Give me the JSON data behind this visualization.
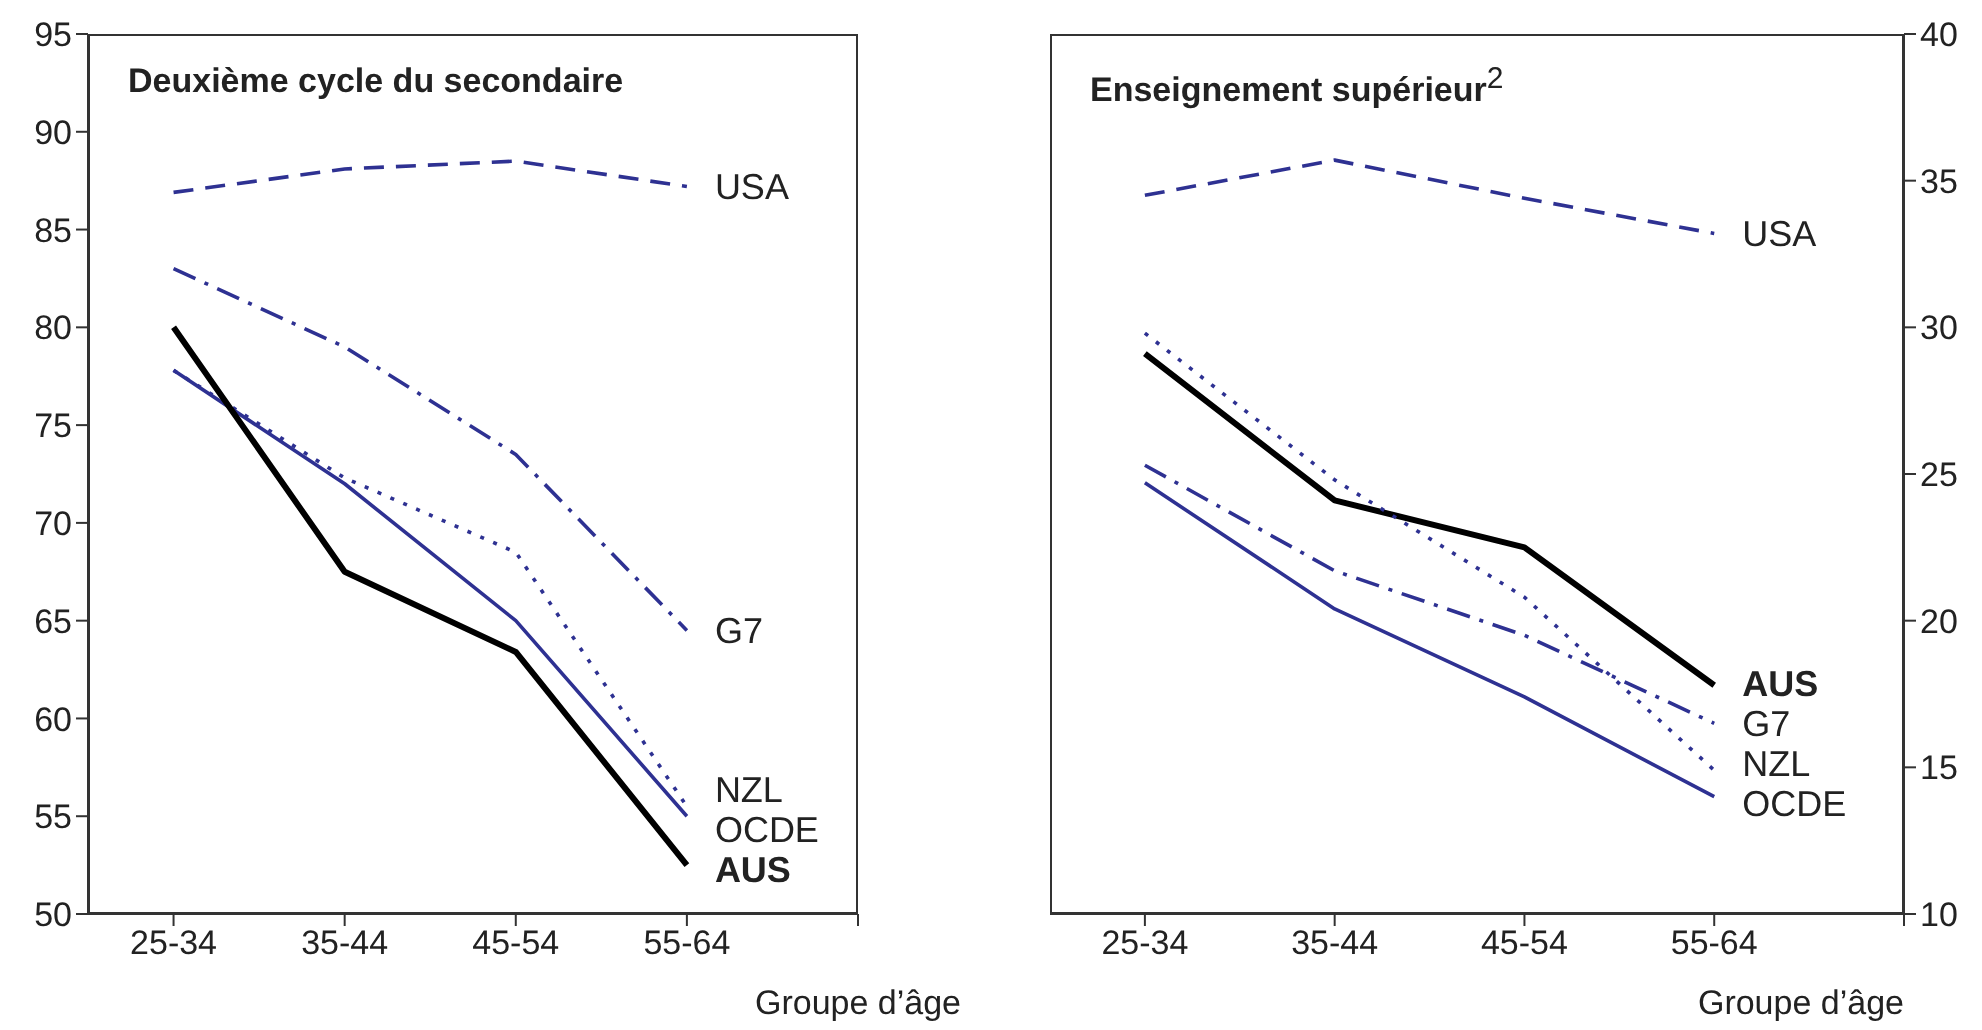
{
  "chart_data": [
    {
      "type": "line",
      "title": "Deuxième cycle du secondaire",
      "xlabel": "Groupe d’âge",
      "categories": [
        "25-34",
        "35-44",
        "45-54",
        "55-64",
        null
      ],
      "ylim": [
        50,
        95
      ],
      "yticks": [
        50,
        55,
        60,
        65,
        70,
        75,
        80,
        85,
        90,
        95
      ],
      "series": [
        {
          "name": "USA",
          "color": "#2e3192",
          "line_style": "dashed",
          "values": [
            86.9,
            88.1,
            88.5,
            87.2,
            null
          ]
        },
        {
          "name": "G7",
          "color": "#2e3192",
          "line_style": "dashdot",
          "values": [
            83.0,
            79.0,
            73.5,
            64.5,
            null
          ]
        },
        {
          "name": "NZL",
          "color": "#2e3192",
          "line_style": "dotted",
          "values": [
            77.8,
            72.3,
            68.5,
            55.5,
            null
          ]
        },
        {
          "name": "OCDE",
          "color": "#2e3192",
          "line_style": "solid",
          "values": [
            77.8,
            72.0,
            65.0,
            55.0,
            null
          ]
        },
        {
          "name": "AUS",
          "color": "#000000",
          "line_style": "solid",
          "values": [
            80.0,
            67.5,
            63.4,
            52.5,
            null
          ]
        }
      ]
    },
    {
      "type": "line",
      "title": "Enseignement supérieur$^{2}$",
      "xlabel": "Groupe d’âge",
      "categories": [
        "25-34",
        "35-44",
        "45-54",
        "55-64",
        null
      ],
      "ylim": [
        10,
        40
      ],
      "yticks": [
        10,
        15,
        20,
        25,
        30,
        35,
        40
      ],
      "series": [
        {
          "name": "USA",
          "color": "#2e3192",
          "line_style": "dashed",
          "values": [
            34.5,
            35.7,
            34.4,
            33.2,
            null
          ]
        },
        {
          "name": "AUS",
          "color": "#000000",
          "line_style": "solid",
          "values": [
            29.1,
            24.1,
            22.5,
            17.8,
            null
          ]
        },
        {
          "name": "G7",
          "color": "#2e3192",
          "line_style": "dashdot",
          "values": [
            25.3,
            21.7,
            19.5,
            16.5,
            null
          ]
        },
        {
          "name": "NZL",
          "color": "#2e3192",
          "line_style": "dotted",
          "values": [
            29.8,
            24.8,
            20.8,
            14.9,
            null
          ]
        },
        {
          "name": "OCDE",
          "color": "#2e3192",
          "line_style": "solid",
          "values": [
            24.7,
            20.4,
            17.4,
            14.0,
            null
          ]
        }
      ]
    }
  ]
}
